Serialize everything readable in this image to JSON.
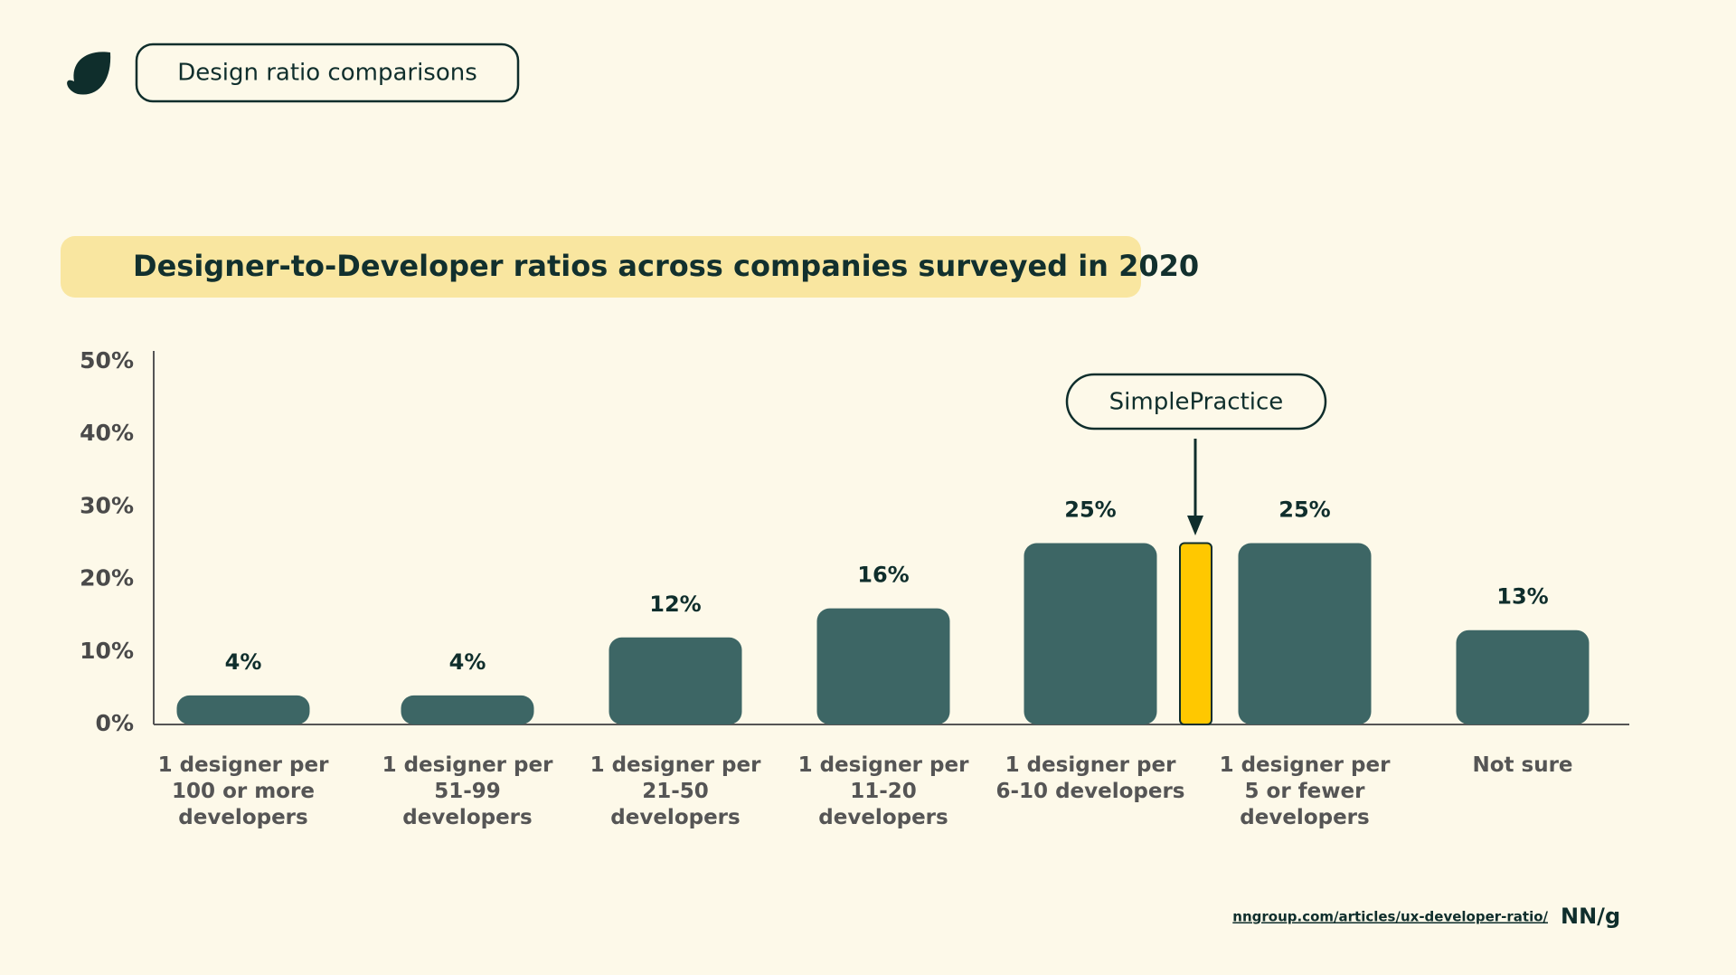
{
  "header": {
    "label": "Design ratio comparisons"
  },
  "chart_data": {
    "type": "bar",
    "title": "Designer-to-Developer ratios across companies surveyed in 2020",
    "categories": [
      "1 designer per 100 or more developers",
      "1 designer per 51-99 developers",
      "1 designer per 21-50 developers",
      "1 designer per 11-20 developers",
      "1 designer per 6-10 developers",
      "1 designer per 5 or fewer developers",
      "Not sure"
    ],
    "values": [
      4,
      4,
      12,
      16,
      25,
      25,
      13
    ],
    "value_labels": [
      "4%",
      "4%",
      "12%",
      "16%",
      "25%",
      "25%",
      "13%"
    ],
    "color": "#3d6665",
    "ylim": [
      0,
      50
    ],
    "yticks": [
      {
        "value": 0,
        "label": "0%"
      },
      {
        "value": 10,
        "label": "10%"
      },
      {
        "value": 20,
        "label": "20%"
      },
      {
        "value": 30,
        "label": "30%"
      },
      {
        "value": 40,
        "label": "40%"
      },
      {
        "value": 50,
        "label": "50%"
      }
    ],
    "highlight": {
      "label": "SimplePractice",
      "value": 25,
      "color": "#ffc800"
    }
  },
  "footer": {
    "source": "nngroup.com/articles/ux-developer-ratio/",
    "brand": "NN/g"
  }
}
